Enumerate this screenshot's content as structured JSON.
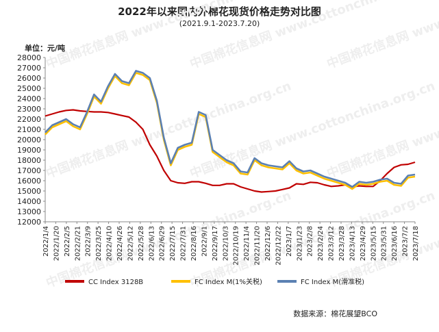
{
  "chart_data": {
    "type": "line",
    "title": "2022年以来国内外棉花现货价格走势对比图",
    "subtitle": "(2021.9.1-2023.7.20)",
    "y_unit": "单位：元/吨",
    "source": "数据来源：棉花展望BCO",
    "watermark": "中国棉花信息网 www.cottonchina.org.cn",
    "ylim": [
      12000,
      28000
    ],
    "y_ticks": [
      12000,
      13000,
      14000,
      15000,
      16000,
      17000,
      18000,
      19000,
      20000,
      21000,
      22000,
      23000,
      24000,
      25000,
      26000,
      27000,
      28000
    ],
    "x_tick_labels": [
      "2022/1/4",
      "2022/1/20",
      "2022/2/5",
      "2022/2/21",
      "2022/3/9",
      "2022/3/25",
      "2022/4/10",
      "2022/4/26",
      "2022/5/12",
      "2022/5/28",
      "2022/6/13",
      "2022/6/29",
      "2022/7/15",
      "2022/7/31",
      "2022/8/16",
      "2022/9/1",
      "2022/9/17",
      "2022/10/3",
      "2022/10/19",
      "2022/11/4",
      "2022/11/20",
      "2022/12/6",
      "2022/12/22",
      "2023/1/7",
      "2023/1/23",
      "2023/2/8",
      "2023/2/24",
      "2023/3/12",
      "2023/3/28",
      "2023/4/13",
      "2023/4/29",
      "2023/5/15",
      "2023/5/31",
      "2023/6/16",
      "2023/7/2",
      "2023/7/18"
    ],
    "series": [
      {
        "name": "CC Index 3128B",
        "color": "#c00000",
        "values": [
          22300,
          22500,
          22700,
          22850,
          22900,
          22800,
          22750,
          22700,
          22700,
          22650,
          22500,
          22350,
          22200,
          21700,
          21000,
          19500,
          18400,
          17000,
          16000,
          15800,
          15750,
          15900,
          15900,
          15750,
          15550,
          15550,
          15700,
          15700,
          15400,
          15200,
          15000,
          14900,
          14950,
          15000,
          15150,
          15300,
          15700,
          15650,
          15850,
          15800,
          15600,
          15450,
          15500,
          15600,
          15400,
          15500,
          15450,
          15450,
          16000,
          16700,
          17300,
          17550,
          17600,
          17800
        ]
      },
      {
        "name": "FC Index M(1%关税)",
        "color": "#ffc000",
        "values": [
          20500,
          21200,
          21500,
          21800,
          21300,
          21000,
          22500,
          24200,
          23500,
          25000,
          26200,
          25500,
          25300,
          26500,
          26300,
          25800,
          23600,
          20000,
          17500,
          19000,
          19300,
          19500,
          22500,
          22200,
          18800,
          18300,
          17800,
          17500,
          16700,
          16600,
          18000,
          17500,
          17300,
          17200,
          17100,
          17700,
          17000,
          16700,
          16800,
          16500,
          16200,
          16000,
          15800,
          15600,
          15200,
          15700,
          15600,
          15700,
          15900,
          16000,
          15600,
          15500,
          16300,
          16400
        ]
      },
      {
        "name": "FC Index M(滑准税)",
        "color": "#5b80b2",
        "values": [
          20700,
          21400,
          21700,
          22000,
          21500,
          21200,
          22700,
          24400,
          23700,
          25200,
          26400,
          25700,
          25500,
          26700,
          26500,
          26000,
          23800,
          20200,
          17700,
          19200,
          19500,
          19700,
          22700,
          22400,
          19000,
          18500,
          18000,
          17700,
          16900,
          16800,
          18200,
          17700,
          17500,
          17400,
          17300,
          17900,
          17200,
          16900,
          17000,
          16700,
          16400,
          16200,
          16000,
          15800,
          15400,
          15900,
          15800,
          15900,
          16100,
          16200,
          15800,
          15700,
          16500,
          16600
        ]
      }
    ]
  }
}
